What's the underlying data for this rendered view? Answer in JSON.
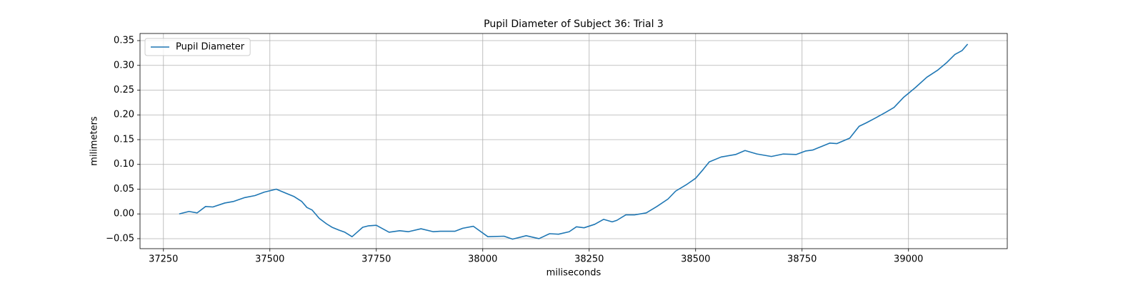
{
  "chart_data": {
    "type": "line",
    "title": "Pupil Diameter of Subject 36: Trial 3",
    "x_label": "miliseconds",
    "y_label": "milimeters",
    "x": [
      37287,
      37310,
      37329,
      37349,
      37366,
      37394,
      37414,
      37441,
      37465,
      37487,
      37515,
      37537,
      37557,
      37575,
      37587,
      37599,
      37616,
      37633,
      37646,
      37663,
      37676,
      37693,
      37705,
      37718,
      37732,
      37750,
      37780,
      37805,
      37825,
      37855,
      37884,
      37900,
      37935,
      37953,
      37978,
      38012,
      38050,
      38070,
      38102,
      38132,
      38157,
      38178,
      38203,
      38220,
      38238,
      38263,
      38284,
      38304,
      38315,
      38336,
      38356,
      38384,
      38409,
      38435,
      38453,
      38480,
      38500,
      38518,
      38532,
      38560,
      38594,
      38616,
      38644,
      38678,
      38706,
      38736,
      38758,
      38775,
      38795,
      38815,
      38832,
      38862,
      38884,
      38901,
      38921,
      38946,
      38966,
      38988,
      39016,
      39043,
      39068,
      39089,
      39109,
      39126,
      39139
    ],
    "series": [
      {
        "name": "Pupil Diameter",
        "color": "#1f77b4",
        "values": [
          0.0,
          0.005,
          0.002,
          0.015,
          0.014,
          0.022,
          0.025,
          0.033,
          0.037,
          0.044,
          0.05,
          0.042,
          0.035,
          0.025,
          0.013,
          0.008,
          -0.009,
          -0.02,
          -0.027,
          -0.033,
          -0.037,
          -0.046,
          -0.037,
          -0.027,
          -0.024,
          -0.023,
          -0.037,
          -0.034,
          -0.036,
          -0.03,
          -0.036,
          -0.035,
          -0.035,
          -0.029,
          -0.025,
          -0.046,
          -0.045,
          -0.051,
          -0.044,
          -0.05,
          -0.04,
          -0.041,
          -0.036,
          -0.026,
          -0.028,
          -0.021,
          -0.011,
          -0.016,
          -0.013,
          -0.002,
          -0.002,
          0.002,
          0.015,
          0.03,
          0.046,
          0.06,
          0.072,
          0.09,
          0.105,
          0.115,
          0.12,
          0.128,
          0.121,
          0.116,
          0.121,
          0.12,
          0.127,
          0.129,
          0.136,
          0.143,
          0.142,
          0.153,
          0.177,
          0.184,
          0.193,
          0.205,
          0.215,
          0.235,
          0.255,
          0.276,
          0.29,
          0.305,
          0.322,
          0.33,
          0.343
        ]
      }
    ],
    "xlim": [
      37195,
      39232
    ],
    "ylim": [
      -0.0702,
      0.3644
    ],
    "xticks": [
      37250,
      37500,
      37750,
      38000,
      38250,
      38500,
      38750,
      39000
    ],
    "yticks": [
      {
        "value": -0.05,
        "label": "−0.05"
      },
      {
        "value": 0,
        "label": "0.00"
      },
      {
        "value": 0.05,
        "label": "0.05"
      },
      {
        "value": 0.1,
        "label": "0.10"
      },
      {
        "value": 0.15,
        "label": "0.15"
      },
      {
        "value": 0.2,
        "label": "0.20"
      },
      {
        "value": 0.25,
        "label": "0.25"
      },
      {
        "value": 0.3,
        "label": "0.30"
      },
      {
        "value": 0.35,
        "label": "0.35"
      }
    ],
    "grid": true,
    "legend": "upper-left"
  }
}
